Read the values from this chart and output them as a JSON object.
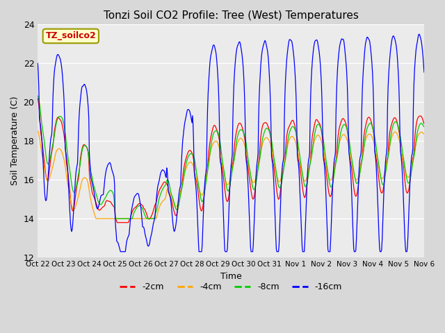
{
  "title": "Tonzi Soil CO2 Profile: Tree (West) Temperatures",
  "xlabel": "Time",
  "ylabel": "Soil Temperature (C)",
  "ylim": [
    12,
    24
  ],
  "yticks": [
    12,
    14,
    16,
    18,
    20,
    22,
    24
  ],
  "annotation": "TZ_soilco2",
  "colors": {
    "-2cm": "#ff0000",
    "-4cm": "#ffa500",
    "-8cm": "#00cc00",
    "-16cm": "#0000ff"
  },
  "background_color": "#d8d8d8",
  "plot_bg_color": "#ebebeb",
  "title_fontsize": 11,
  "tick_labels": [
    "Oct 22",
    "Oct 23",
    "Oct 24",
    "Oct 25",
    "Oct 26",
    "Oct 27",
    "Oct 28",
    "Oct 29",
    "Oct 30",
    "Oct 31",
    "Nov 1",
    "Nov 2",
    "Nov 3",
    "Nov 4",
    "Nov 5",
    "Nov 6"
  ]
}
